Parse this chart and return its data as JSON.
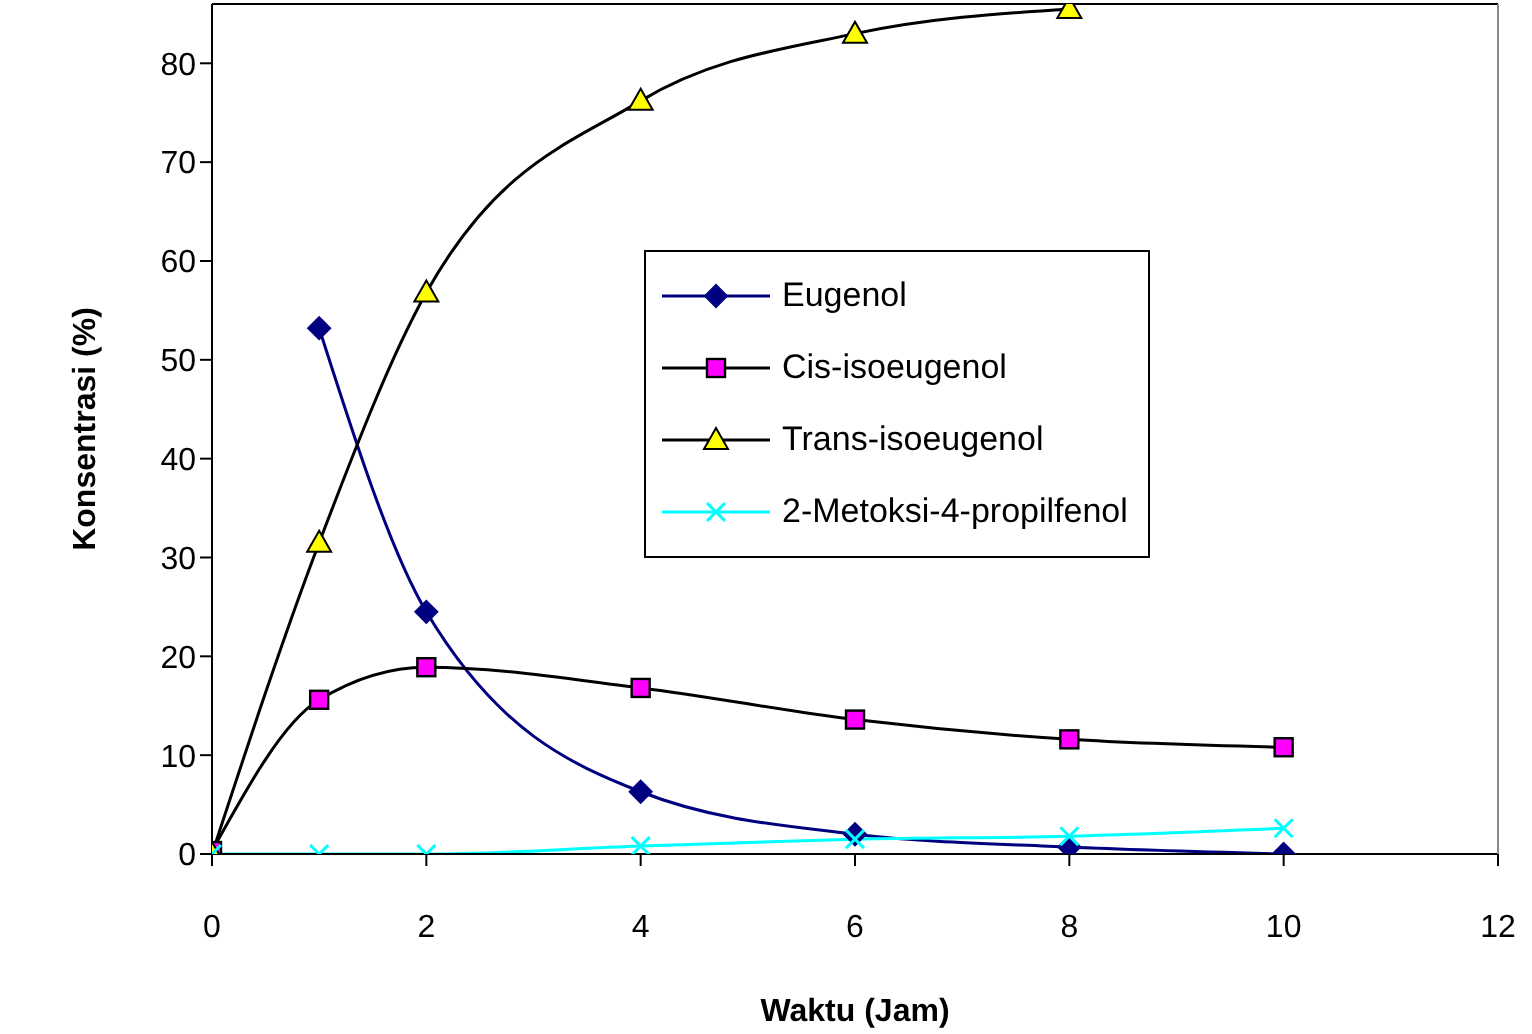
{
  "chart_data": {
    "type": "line",
    "xlabel": "Waktu (Jam)",
    "ylabel": "Konsentrasi (%)",
    "x": [
      0,
      1,
      2,
      4,
      6,
      8,
      10
    ],
    "series": [
      {
        "name": "Eugenol",
        "color": "#000080",
        "marker": "diamond",
        "values": [
          null,
          53.2,
          24.5,
          6.3,
          2.0,
          0.7,
          0
        ]
      },
      {
        "name": "Cis-isoeugenol",
        "color": "#000000",
        "colors": [
          "#ff00ff",
          "#ff00ff",
          "#ff00ff",
          "#ff00ff",
          "#ff00ff",
          "#ff00ff",
          "#ff00ff"
        ],
        "marker": "square",
        "values": [
          0.3,
          15.6,
          18.9,
          16.8,
          13.6,
          11.6,
          10.8
        ]
      },
      {
        "name": "Trans-isoeugenol",
        "color": "#000000",
        "colors": [
          "#ffff00",
          "#ffff00",
          "#ffff00",
          "#ffff00",
          "#ffff00",
          "#ffff00"
        ],
        "marker": "triangle",
        "x": [
          0,
          1,
          2,
          4,
          6,
          8
        ],
        "values": [
          0,
          31.5,
          56.8,
          76.2,
          83,
          85.5
        ]
      },
      {
        "name": "2-Metoksi-4-propilfenol",
        "color": "#00ffff",
        "marker": "cross",
        "values": [
          0,
          0,
          0,
          0.8,
          1.5,
          1.8,
          2.6
        ]
      }
    ],
    "xlim": [
      0,
      12
    ],
    "xticks": [
      0,
      2,
      4,
      6,
      8,
      10,
      12
    ],
    "ylim": [
      0,
      86
    ],
    "yticks": [
      0,
      10,
      20,
      30,
      40,
      50,
      60,
      70,
      80
    ],
    "legend": "right",
    "line_style": "solid"
  }
}
